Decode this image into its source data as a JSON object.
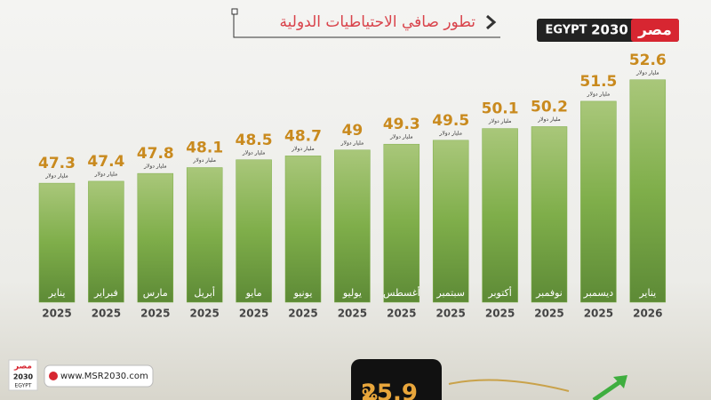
{
  "chart_data": {
    "type": "bar",
    "title": "تطور صافي الاحتياطيات الدولية",
    "categories": [
      "يناير",
      "فبراير",
      "مارس",
      "أبريل",
      "مايو",
      "يونيو",
      "يوليو",
      "أغسطس",
      "سبتمبر",
      "أكتوبر",
      "نوفمبر",
      "ديسمبر",
      "يناير"
    ],
    "years": [
      "2025",
      "2025",
      "2025",
      "2025",
      "2025",
      "2025",
      "2025",
      "2025",
      "2025",
      "2025",
      "2025",
      "2025",
      "2026"
    ],
    "values": [
      47.3,
      47.4,
      47.8,
      48.1,
      48.5,
      48.7,
      49,
      49.3,
      49.5,
      50.1,
      50.2,
      51.5,
      52.6
    ],
    "unit": "مليار دولار",
    "color": "#7fae4a",
    "ylim": [
      41.2,
      53.5
    ]
  },
  "logo": {
    "arabic": "مصر",
    "english": "EGYPT",
    "year": "2030"
  },
  "footer": {
    "website": "www.MSR2030.com",
    "highlight": "25.9",
    "highlight_unit": "%"
  }
}
